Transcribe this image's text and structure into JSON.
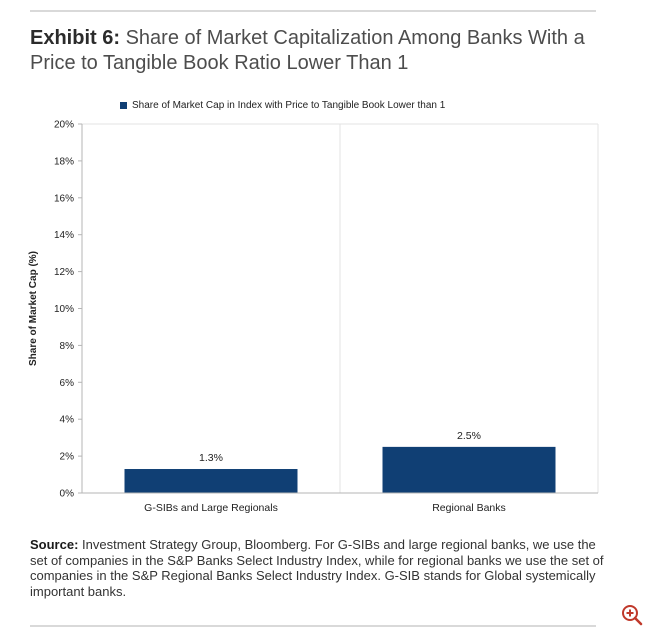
{
  "exhibit": {
    "prefix": "Exhibit 6:",
    "title": "Share of Market Capitalization Among Banks With a Price to Tangible Book Ratio Lower Than 1"
  },
  "source": {
    "label": "Source:",
    "text": "Investment Strategy Group, Bloomberg. For G-SIBs and large regional banks, we use the set of companies in the S&P Banks Select Industry Index, while for regional banks we use the set of companies in the S&P Regional Banks Select Industry Index. G-SIB stands for Global systemically important banks."
  },
  "zoom_icon": "zoom-in-icon",
  "colors": {
    "bar": "#103f74",
    "accent": "#c0392b"
  },
  "chart_data": {
    "type": "bar",
    "title": "",
    "categories": [
      "G-SIBs and Large Regionals",
      "Regional Banks"
    ],
    "series": [
      {
        "name": "Share of Market Cap in Index with Price to Tangible Book Lower than 1",
        "values": [
          1.3,
          2.5
        ]
      }
    ],
    "data_labels": [
      "1.3%",
      "2.5%"
    ],
    "xlabel": "",
    "ylabel": "Share of Market Cap (%)",
    "ylim": [
      0,
      20
    ],
    "yticks": [
      0,
      2,
      4,
      6,
      8,
      10,
      12,
      14,
      16,
      18,
      20
    ],
    "ytick_labels": [
      "0%",
      "2%",
      "4%",
      "6%",
      "8%",
      "10%",
      "12%",
      "14%",
      "16%",
      "18%",
      "20%"
    ],
    "legend": "top-center",
    "grid": false
  }
}
